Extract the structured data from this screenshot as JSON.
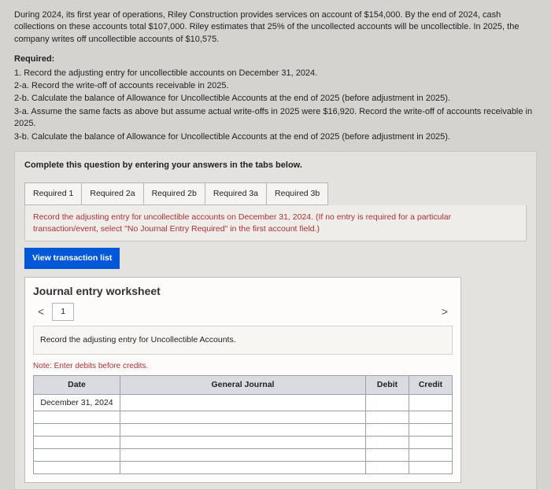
{
  "intro": "During 2024, its first year of operations, Riley Construction provides services on account of $154,000. By the end of 2024, cash collections on these accounts total $107,000. Riley estimates that 25% of the uncollected accounts will be uncollectible. In 2025, the company writes off uncollectible accounts of $10,575.",
  "requiredLabel": "Required:",
  "requirements": [
    "1. Record the adjusting entry for uncollectible accounts on December 31, 2024.",
    "2-a. Record the write-off of accounts receivable in 2025.",
    "2-b. Calculate the balance of Allowance for Uncollectible Accounts at the end of 2025 (before adjustment in 2025).",
    "3-a. Assume the same facts as above but assume actual write-offs in 2025 were $16,920. Record the write-off of accounts receivable in 2025.",
    "3-b. Calculate the balance of Allowance for Uncollectible Accounts at the end of 2025 (before adjustment in 2025)."
  ],
  "instruction": "Complete this question by entering your answers in the tabs below.",
  "tabs": [
    "Required 1",
    "Required 2a",
    "Required 2b",
    "Required 3a",
    "Required 3b"
  ],
  "tabInstruction": "Record the adjusting entry for uncollectible accounts on December 31, 2024. (If no entry is required for a particular transaction/event, select \"No Journal Entry Required\" in the first account field.)",
  "viewBtn": "View transaction list",
  "worksheet": {
    "title": "Journal entry worksheet",
    "chevLeft": "<",
    "chevRight": ">",
    "wsTabs": [
      "1"
    ],
    "prompt": "Record the adjusting entry for Uncollectible Accounts.",
    "note": "Note: Enter debits before credits.",
    "headers": {
      "date": "Date",
      "gj": "General Journal",
      "debit": "Debit",
      "credit": "Credit"
    },
    "rows": [
      {
        "date": "December 31, 2024",
        "gj": "",
        "debit": "",
        "credit": ""
      },
      {
        "date": "",
        "gj": "",
        "debit": "",
        "credit": ""
      },
      {
        "date": "",
        "gj": "",
        "debit": "",
        "credit": ""
      },
      {
        "date": "",
        "gj": "",
        "debit": "",
        "credit": ""
      },
      {
        "date": "",
        "gj": "",
        "debit": "",
        "credit": ""
      },
      {
        "date": "",
        "gj": "",
        "debit": "",
        "credit": ""
      }
    ]
  },
  "colors": {
    "bg": "#d5d3cf",
    "panel": "#e4e2de",
    "accentBlue": "#0057d8",
    "accentRed": "#b03030"
  }
}
